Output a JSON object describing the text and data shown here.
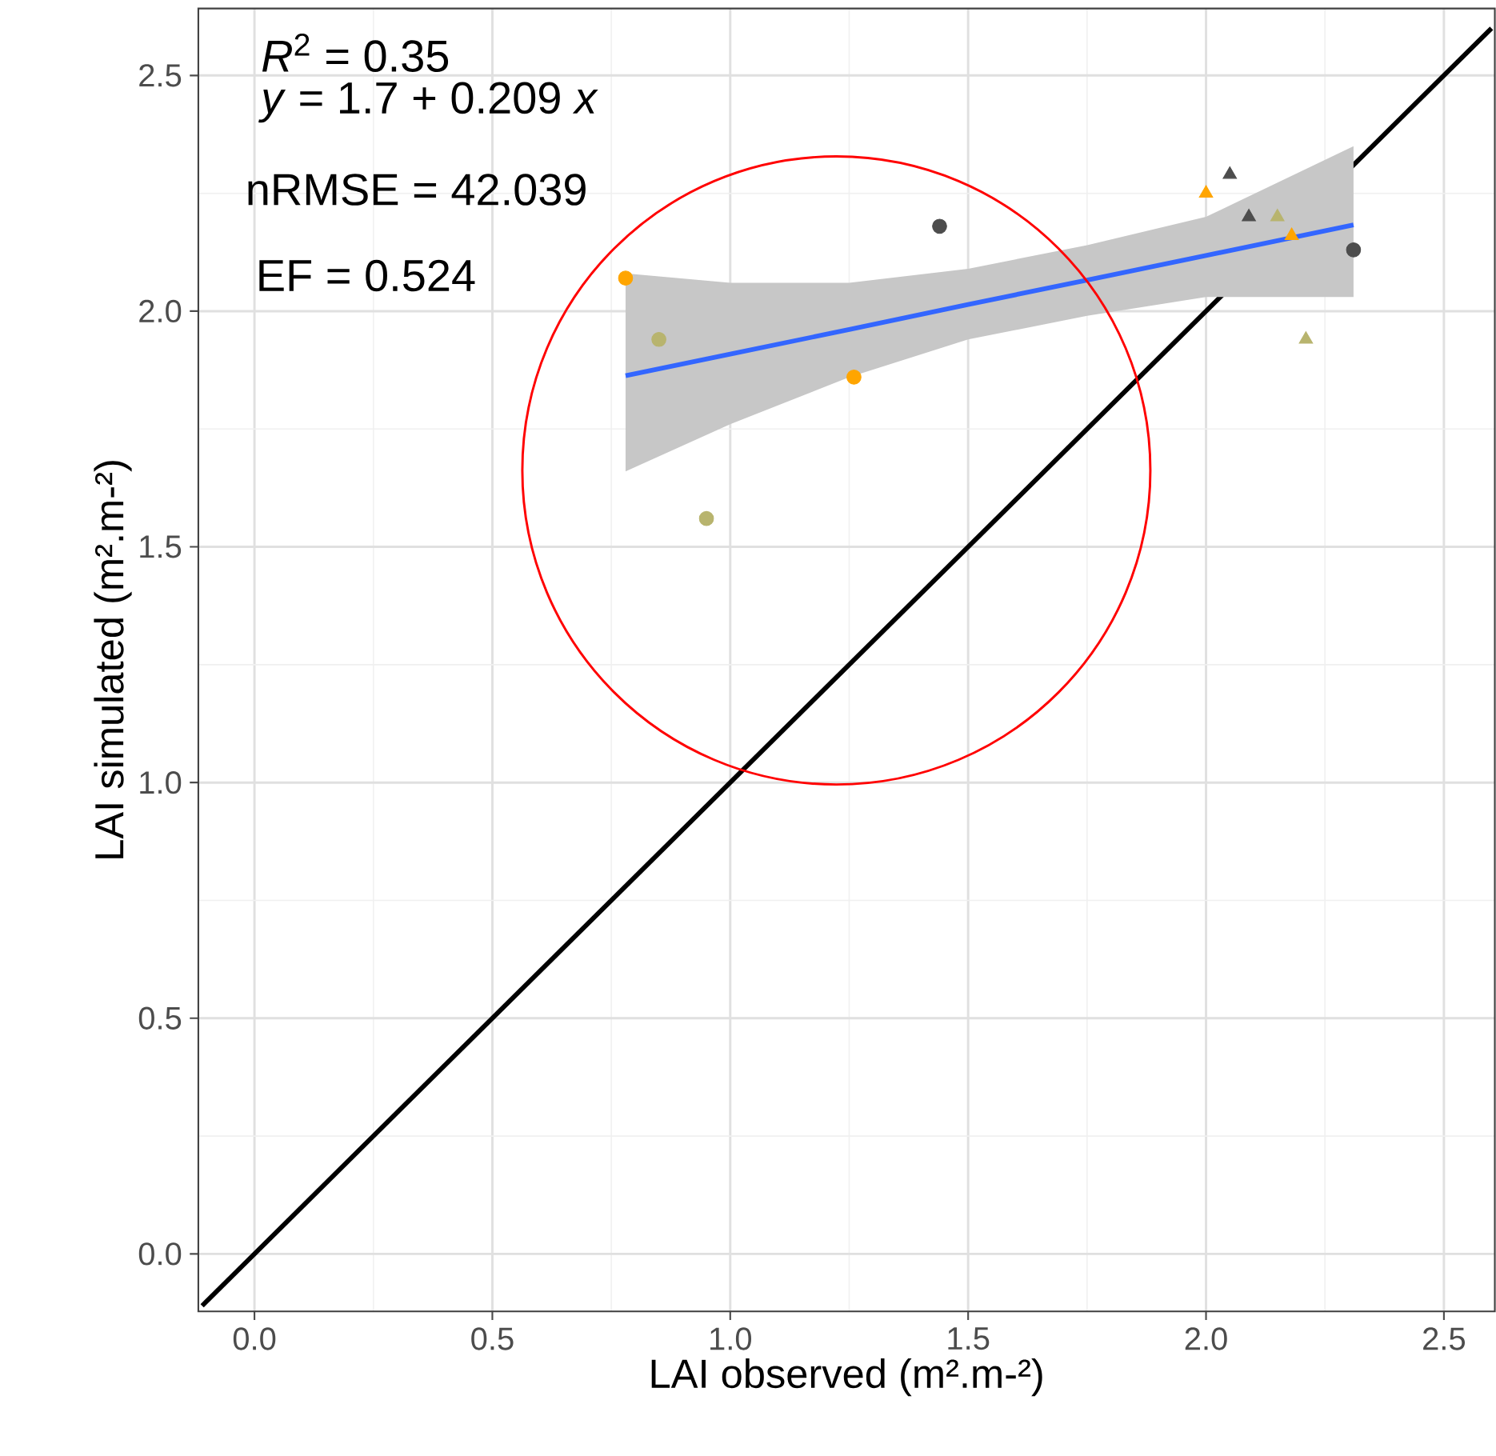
{
  "chart_data": {
    "type": "scatter",
    "xlabel": "LAI observed (m².m-²)",
    "ylabel": "LAI simulated (m².m-²)",
    "xlim": [
      -0.118,
      2.607
    ],
    "ylim": [
      -0.122,
      2.642
    ],
    "xticks": [
      {
        "value": 0,
        "label": "0.0"
      },
      {
        "value": 0.5,
        "label": "0.5"
      },
      {
        "value": 1,
        "label": "1.0"
      },
      {
        "value": 1.5,
        "label": "1.5"
      },
      {
        "value": 2,
        "label": "2.0"
      },
      {
        "value": 2.5,
        "label": "2.5"
      }
    ],
    "yticks": [
      {
        "value": 0,
        "label": "0.0"
      },
      {
        "value": 0.5,
        "label": "0.5"
      },
      {
        "value": 1,
        "label": "1.0"
      },
      {
        "value": 1.5,
        "label": "1.5"
      },
      {
        "value": 2,
        "label": "2.0"
      },
      {
        "value": 2.5,
        "label": "2.5"
      }
    ],
    "grid": true,
    "annotations": [
      "*R*$^{2}$ = 0.35",
      "*y* = 1.7 + 0.209 *x*",
      "nRMSE =  42.039",
      "EF =  0.524"
    ],
    "series": [
      {
        "type": "line",
        "color": "#000000",
        "marker": "none",
        "line_style": "solid",
        "x": [
          -0.11,
          2.6
        ],
        "values": [
          -0.11,
          2.6
        ]
      },
      {
        "type": "line",
        "color": "#3366ff",
        "marker": "none",
        "line_style": "solid",
        "x": [
          0.78,
          1.0,
          1.25,
          1.5,
          1.75,
          2.0,
          2.31
        ],
        "values": [
          1.863,
          1.909,
          1.961,
          2.014,
          2.066,
          2.118,
          2.183
        ],
        "lower": [
          1.66,
          1.76,
          1.86,
          1.94,
          1.99,
          2.03,
          2.03
        ],
        "upper": [
          2.08,
          2.06,
          2.06,
          2.09,
          2.14,
          2.2,
          2.35
        ]
      },
      {
        "color": "#ffa500",
        "marker": "circle",
        "x": [
          0.78,
          1.26
        ],
        "values": [
          2.07,
          1.86
        ]
      },
      {
        "color": "#b8b46e",
        "marker": "circle",
        "x": [
          0.85,
          0.95
        ],
        "values": [
          1.94,
          1.56
        ]
      },
      {
        "color": "#4d4d4d",
        "marker": "circle",
        "x": [
          1.44,
          2.31
        ],
        "values": [
          2.18,
          2.13
        ]
      },
      {
        "color": "#ffa500",
        "marker": "triangle",
        "x": [
          2.0,
          2.18
        ],
        "values": [
          2.25,
          2.16
        ]
      },
      {
        "color": "#4d4d4d",
        "marker": "triangle",
        "x": [
          2.05,
          2.09
        ],
        "values": [
          2.29,
          2.2
        ]
      },
      {
        "color": "#b8b46e",
        "marker": "triangle",
        "x": [
          2.15,
          2.21
        ],
        "values": [
          2.2,
          1.94
        ]
      }
    ]
  }
}
